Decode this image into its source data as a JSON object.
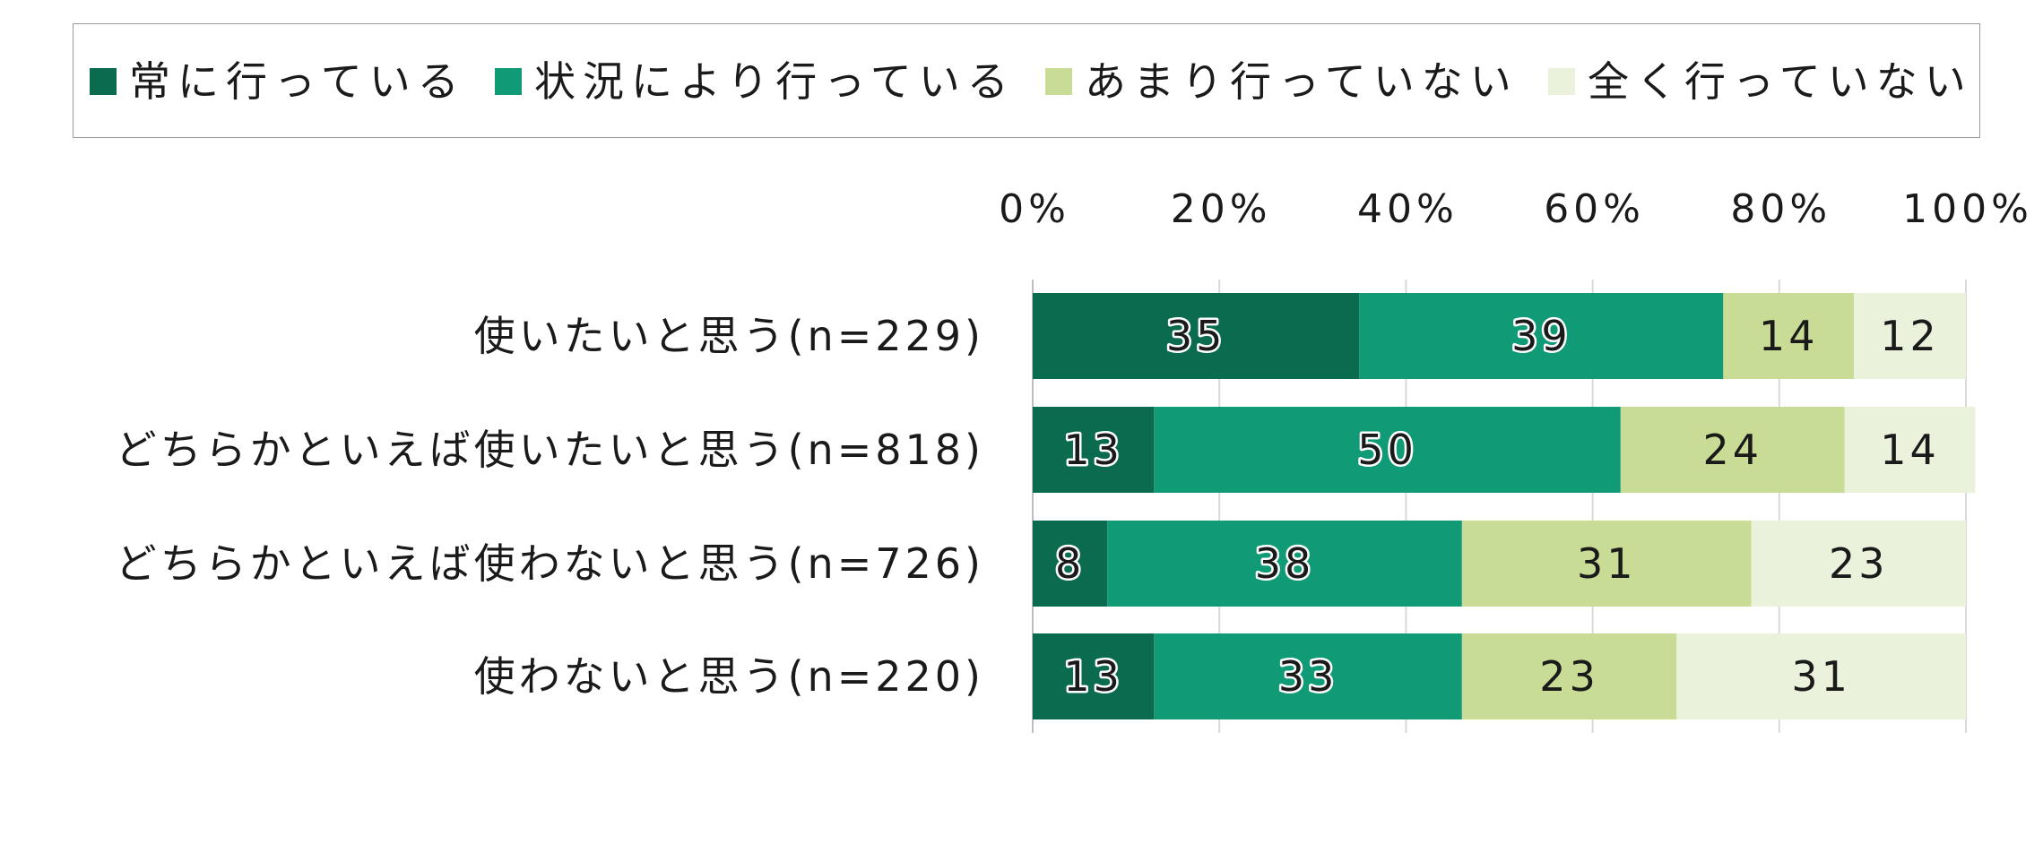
{
  "chart_data": {
    "type": "bar",
    "orientation": "horizontal",
    "stacked": "percent",
    "categories": [
      "使いたいと思う(n=229)",
      "どちらかといえば使いたいと思う(n=818)",
      "どちらかといえば使わないと思う(n=726)",
      "使わないと思う(n=220)"
    ],
    "series": [
      {
        "name": "常に行っている",
        "color": "#0a6b4f",
        "values": [
          35,
          13,
          8,
          13
        ]
      },
      {
        "name": "状況により行っている",
        "color": "#109b76",
        "values": [
          39,
          50,
          38,
          33
        ]
      },
      {
        "name": "あまり行っていない",
        "color": "#c9dc95",
        "values": [
          14,
          24,
          31,
          23
        ]
      },
      {
        "name": "全く行っていない",
        "color": "#ebf2dc",
        "values": [
          12,
          14,
          23,
          31
        ]
      }
    ],
    "xlim": [
      0,
      100
    ],
    "x_ticks": [
      "0%",
      "20%",
      "40%",
      "60%",
      "80%",
      "100%"
    ],
    "x_axis_position": "top",
    "grid": true,
    "legend_position": "top",
    "data_labels": true
  }
}
